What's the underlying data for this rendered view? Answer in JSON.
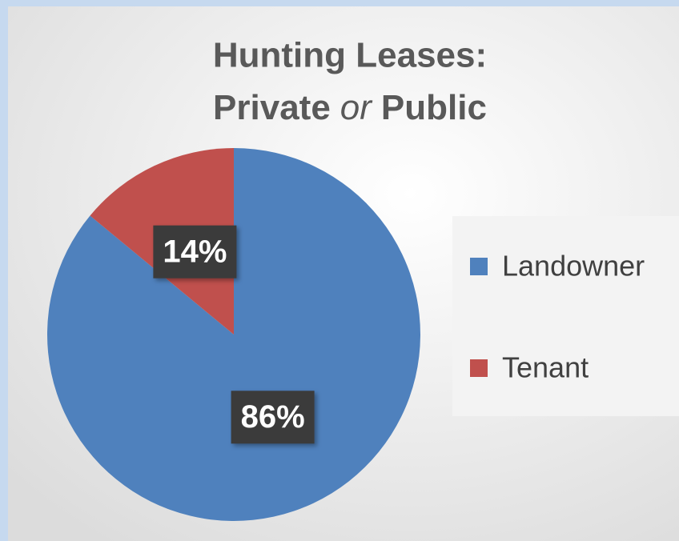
{
  "chart_data": {
    "type": "pie",
    "title": [
      "Hunting Leases:",
      "Private",
      "or",
      "Public"
    ],
    "categories": [
      "Landowner",
      "Tenant"
    ],
    "values": [
      86,
      14
    ],
    "value_labels": [
      "86%",
      "14%"
    ],
    "colors": [
      "#4f81bd",
      "#c0504d"
    ],
    "start_angle": 0,
    "direction": "clockwise",
    "legend": "right"
  }
}
